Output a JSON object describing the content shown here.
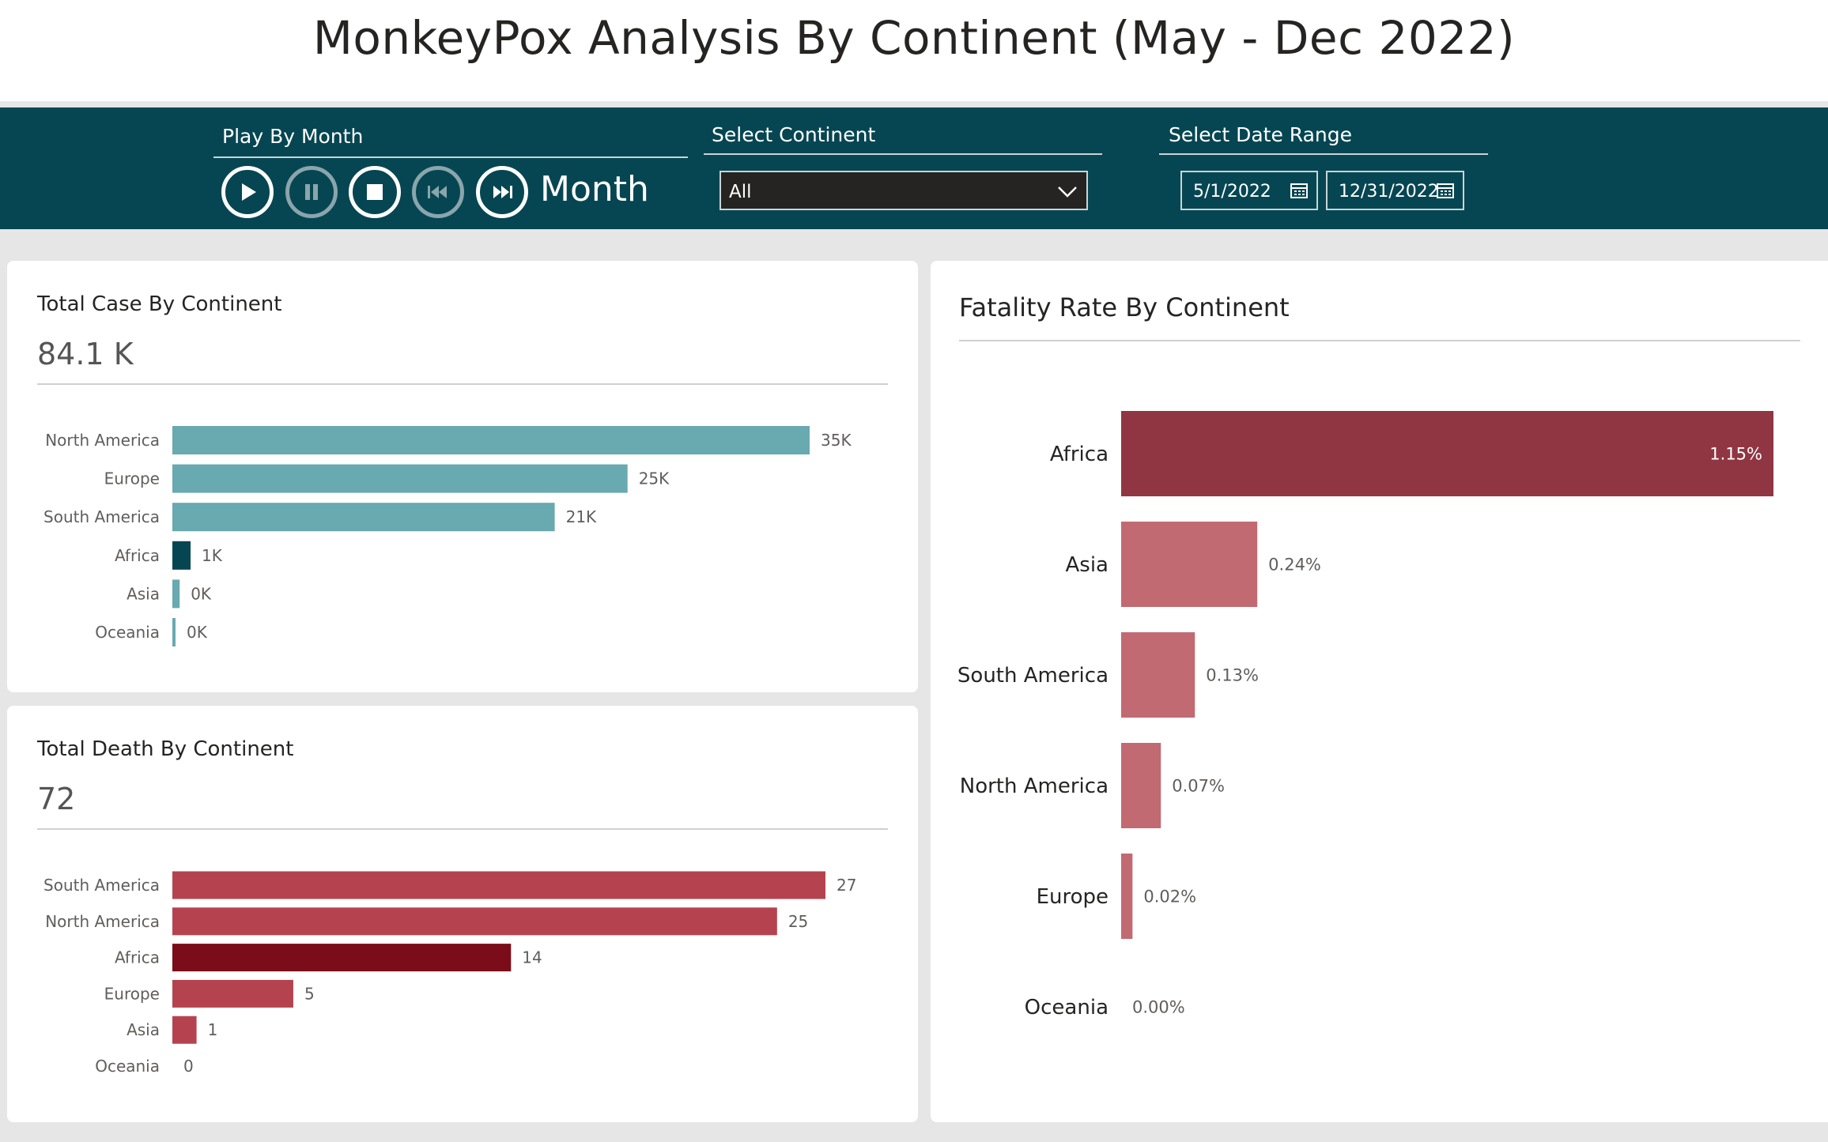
{
  "header": {
    "title": "MonkeyPox Analysis By Continent (May - Dec 2022)"
  },
  "controls": {
    "play_label": "Play By Month",
    "month_label": "Month",
    "continent_label": "Select Continent",
    "continent_value": "All",
    "date_label": "Select Date Range",
    "date_start": "5/1/2022",
    "date_end": "12/31/2022",
    "buttons": [
      "play-icon",
      "pause-icon",
      "stop-icon",
      "skip-back-icon",
      "skip-forward-icon"
    ]
  },
  "cases": {
    "title": "Total Case By Continent",
    "kpi": "84.1 K"
  },
  "deaths": {
    "title": "Total Death By Continent",
    "kpi": "72"
  },
  "fatality": {
    "title": "Fatality Rate By Continent"
  },
  "colors": {
    "header_bg": "#064652",
    "case_bar": "#69a9b0",
    "case_highlight": "#064652",
    "death_bar": "#b5434f",
    "death_highlight": "#7a0d19",
    "fatality_max": "#903643",
    "fatality_bar": "#c16a72"
  },
  "chart_data": [
    {
      "type": "bar",
      "name": "cases",
      "categories": [
        "North America",
        "Europe",
        "South America",
        "Africa",
        "Asia",
        "Oceania"
      ],
      "values": [
        35000,
        25000,
        21000,
        1000,
        400,
        100
      ],
      "labels": [
        "35K",
        "25K",
        "21K",
        "1K",
        "0K",
        "0K"
      ],
      "highlight": "Africa"
    },
    {
      "type": "bar",
      "name": "deaths",
      "categories": [
        "South America",
        "North America",
        "Africa",
        "Europe",
        "Asia",
        "Oceania"
      ],
      "values": [
        27,
        25,
        14,
        5,
        1,
        0
      ],
      "labels": [
        "27",
        "25",
        "14",
        "5",
        "1",
        "0"
      ],
      "highlight": "Africa"
    },
    {
      "type": "bar",
      "name": "fatality",
      "categories": [
        "Africa",
        "Asia",
        "South America",
        "North America",
        "Europe",
        "Oceania"
      ],
      "values": [
        1.15,
        0.24,
        0.13,
        0.07,
        0.02,
        0.0
      ],
      "labels": [
        "1.15%",
        "0.24%",
        "0.13%",
        "0.07%",
        "0.02%",
        "0.00%"
      ],
      "highlight": "Africa"
    }
  ]
}
